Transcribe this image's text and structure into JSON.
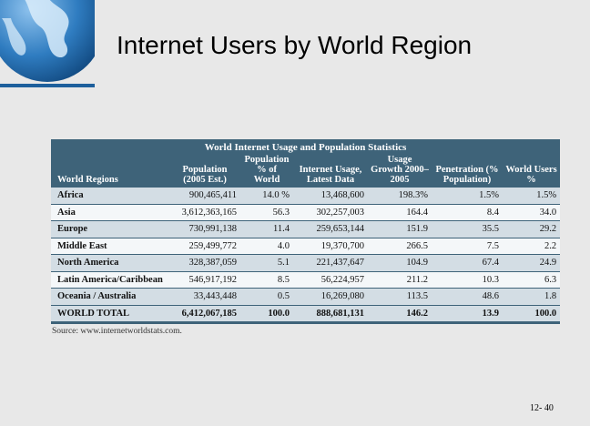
{
  "slide": {
    "title": "Internet Users by World Region",
    "page_number": "12- 40"
  },
  "table": {
    "caption": "World Internet Usage and Population Statistics",
    "headers": [
      "World Regions",
      "Population (2005 Est.)",
      "Population % of World",
      "Internet Usage, Latest Data",
      "Usage Growth 2000–2005",
      "Penetration (% Population)",
      "World Users %"
    ],
    "rows": [
      [
        "Africa",
        "900,465,411",
        "14.0 %",
        "13,468,600",
        "198.3%",
        "1.5%",
        "1.5%"
      ],
      [
        "Asia",
        "3,612,363,165",
        "56.3",
        "302,257,003",
        "164.4",
        "8.4",
        "34.0"
      ],
      [
        "Europe",
        "730,991,138",
        "11.4",
        "259,653,144",
        "151.9",
        "35.5",
        "29.2"
      ],
      [
        "Middle East",
        "259,499,772",
        "4.0",
        "19,370,700",
        "266.5",
        "7.5",
        "2.2"
      ],
      [
        "North America",
        "328,387,059",
        "5.1",
        "221,437,647",
        "104.9",
        "67.4",
        "24.9"
      ],
      [
        "Latin America/Caribbean",
        "546,917,192",
        "8.5",
        "56,224,957",
        "211.2",
        "10.3",
        "6.3"
      ],
      [
        "Oceania / Australia",
        "33,443,448",
        "0.5",
        "16,269,080",
        "113.5",
        "48.6",
        "1.8"
      ]
    ],
    "total": [
      "WORLD TOTAL",
      "6,412,067,185",
      "100.0",
      "888,681,131",
      "146.2",
      "13.9",
      "100.0"
    ],
    "source": "Source: www.internetworldstats.com."
  },
  "colors": {
    "header_bg": "#3e6379",
    "row_shade": "#d3dde4",
    "globe_blue": "#1d5f9c"
  },
  "icons": {
    "logo": "globe-icon"
  }
}
